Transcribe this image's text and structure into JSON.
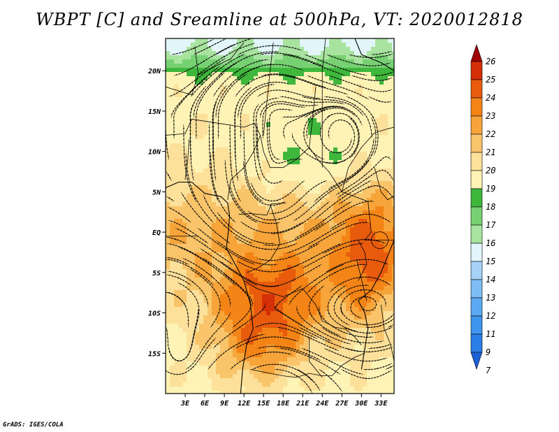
{
  "title": "WBPT [C] and Sreamline at 500hPa, VT: 2020012818",
  "footer": "GrADS: IGES/COLA",
  "map": {
    "lon_range": [
      0,
      35
    ],
    "lat_range": [
      -20,
      24
    ],
    "lon_ticks": [
      "3E",
      "6E",
      "9E",
      "12E",
      "15E",
      "18E",
      "21E",
      "24E",
      "27E",
      "30E",
      "33E"
    ],
    "lon_tick_values": [
      3,
      6,
      9,
      12,
      15,
      18,
      21,
      24,
      27,
      30,
      33
    ],
    "lat_ticks": [
      "20N",
      "15N",
      "10N",
      "5N",
      "EQ",
      "5S",
      "10S",
      "15S"
    ],
    "lat_tick_values": [
      20,
      15,
      10,
      5,
      0,
      -5,
      -10,
      -15
    ]
  },
  "colorbar": {
    "levels": [
      "7",
      "9",
      "11",
      "12",
      "13",
      "14",
      "15",
      "16",
      "17",
      "18",
      "19",
      "20",
      "21",
      "22",
      "23",
      "24",
      "25",
      "26"
    ],
    "colors": [
      "#1f5fd6",
      "#2a7ee6",
      "#3e95ee",
      "#5aa9f2",
      "#7ebcf5",
      "#a6d2f8",
      "#e1f5fb",
      "#a8e49f",
      "#77d071",
      "#3fb63c",
      "#fff2b5",
      "#fde09a",
      "#f9c46a",
      "#f7a43a",
      "#f48416",
      "#e85a0c",
      "#d42f06",
      "#a10000"
    ]
  },
  "icons": {
    "cb_up": "triangle-up",
    "cb_down": "triangle-down"
  }
}
